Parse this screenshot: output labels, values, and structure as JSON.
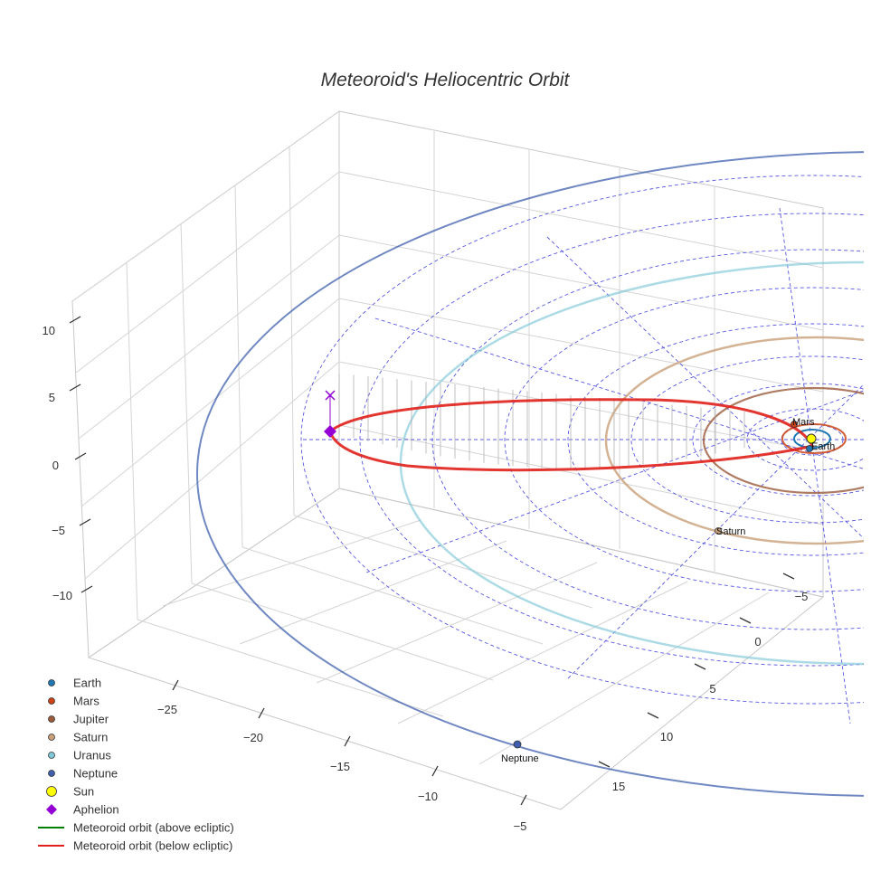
{
  "chart_data": {
    "type": "line",
    "title": "Meteoroid's Heliocentric Orbit",
    "axis_ticks": {
      "z": [
        "10",
        "5",
        "0",
        "−5",
        "−10"
      ],
      "x": [
        "−25",
        "−20",
        "−15",
        "−10",
        "−5"
      ],
      "y": [
        "−5",
        "0",
        "5",
        "10",
        "15"
      ]
    },
    "planet_labels": [
      {
        "name": "Mars"
      },
      {
        "name": "Earth"
      },
      {
        "name": "Saturn"
      },
      {
        "name": "Neptune"
      }
    ],
    "series": [
      {
        "name": "Earth",
        "marker": "circle",
        "color": "#1f77b4"
      },
      {
        "name": "Mars",
        "marker": "circle",
        "color": "#cc4416"
      },
      {
        "name": "Jupiter",
        "marker": "circle",
        "color": "#9c5a3c"
      },
      {
        "name": "Saturn",
        "marker": "circle",
        "color": "#c9a07a"
      },
      {
        "name": "Uranus",
        "marker": "circle",
        "color": "#7fc8d8"
      },
      {
        "name": "Neptune",
        "marker": "circle",
        "color": "#3f5fae"
      },
      {
        "name": "Sun",
        "marker": "circle",
        "color": "#ffff00"
      },
      {
        "name": "Aphelion",
        "marker": "diamond",
        "color": "#9400d3"
      },
      {
        "name": "Meteoroid orbit (above ecliptic)",
        "marker": "line",
        "color": "#008000"
      },
      {
        "name": "Meteoroid orbit (below ecliptic)",
        "marker": "line",
        "color": "#e0201b"
      }
    ],
    "grid": true,
    "legend_position": "bottom-left"
  }
}
